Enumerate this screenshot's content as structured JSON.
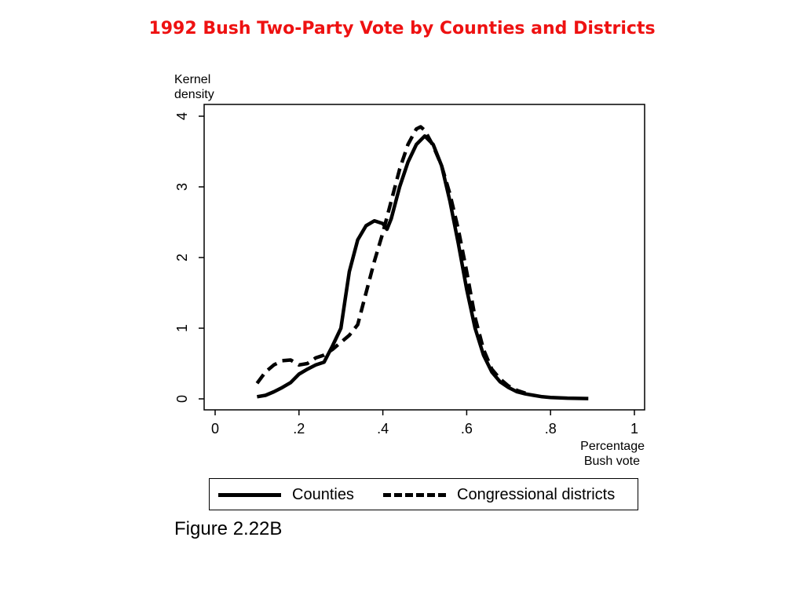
{
  "slide": {
    "title": "1992 Bush Two-Party Vote by Counties and Districts",
    "title_color": "#ee1111",
    "figure_label": "Figure 2.22B"
  },
  "chart_data": {
    "type": "line",
    "title": "",
    "xlabel": "Percentage Bush vote",
    "ylabel": "Kernel density",
    "xlim": [
      0,
      1
    ],
    "ylim": [
      0,
      4
    ],
    "x_ticks": [
      "0",
      ".2",
      ".4",
      ".6",
      ".8",
      "1"
    ],
    "y_ticks": [
      "0",
      "1",
      "2",
      "3",
      "4"
    ],
    "grid": false,
    "legend_position": "bottom",
    "line_color": "#000000",
    "series": [
      {
        "name": "Counties",
        "style": "solid",
        "points": [
          [
            0.1,
            0.03
          ],
          [
            0.12,
            0.05
          ],
          [
            0.14,
            0.1
          ],
          [
            0.16,
            0.16
          ],
          [
            0.18,
            0.23
          ],
          [
            0.2,
            0.35
          ],
          [
            0.22,
            0.42
          ],
          [
            0.24,
            0.48
          ],
          [
            0.26,
            0.52
          ],
          [
            0.28,
            0.75
          ],
          [
            0.3,
            1.0
          ],
          [
            0.31,
            1.4
          ],
          [
            0.32,
            1.8
          ],
          [
            0.34,
            2.25
          ],
          [
            0.36,
            2.45
          ],
          [
            0.38,
            2.52
          ],
          [
            0.4,
            2.48
          ],
          [
            0.41,
            2.4
          ],
          [
            0.42,
            2.55
          ],
          [
            0.44,
            3.0
          ],
          [
            0.46,
            3.35
          ],
          [
            0.48,
            3.6
          ],
          [
            0.5,
            3.72
          ],
          [
            0.52,
            3.6
          ],
          [
            0.54,
            3.3
          ],
          [
            0.56,
            2.8
          ],
          [
            0.58,
            2.2
          ],
          [
            0.6,
            1.55
          ],
          [
            0.62,
            1.0
          ],
          [
            0.64,
            0.62
          ],
          [
            0.66,
            0.38
          ],
          [
            0.68,
            0.24
          ],
          [
            0.7,
            0.16
          ],
          [
            0.72,
            0.1
          ],
          [
            0.74,
            0.07
          ],
          [
            0.76,
            0.05
          ],
          [
            0.78,
            0.03
          ],
          [
            0.8,
            0.02
          ],
          [
            0.84,
            0.01
          ],
          [
            0.89,
            0.005
          ]
        ]
      },
      {
        "name": "Congressional districts",
        "style": "dashed",
        "points": [
          [
            0.1,
            0.22
          ],
          [
            0.12,
            0.38
          ],
          [
            0.14,
            0.48
          ],
          [
            0.16,
            0.54
          ],
          [
            0.18,
            0.55
          ],
          [
            0.2,
            0.48
          ],
          [
            0.22,
            0.5
          ],
          [
            0.24,
            0.58
          ],
          [
            0.26,
            0.62
          ],
          [
            0.28,
            0.7
          ],
          [
            0.3,
            0.8
          ],
          [
            0.32,
            0.9
          ],
          [
            0.34,
            1.05
          ],
          [
            0.36,
            1.5
          ],
          [
            0.38,
            1.95
          ],
          [
            0.4,
            2.35
          ],
          [
            0.42,
            2.8
          ],
          [
            0.44,
            3.25
          ],
          [
            0.46,
            3.6
          ],
          [
            0.48,
            3.82
          ],
          [
            0.49,
            3.85
          ],
          [
            0.5,
            3.8
          ],
          [
            0.52,
            3.58
          ],
          [
            0.54,
            3.3
          ],
          [
            0.56,
            2.9
          ],
          [
            0.58,
            2.4
          ],
          [
            0.6,
            1.8
          ],
          [
            0.62,
            1.15
          ],
          [
            0.64,
            0.7
          ],
          [
            0.66,
            0.42
          ],
          [
            0.68,
            0.28
          ],
          [
            0.7,
            0.18
          ],
          [
            0.72,
            0.12
          ],
          [
            0.74,
            0.08
          ]
        ]
      }
    ]
  }
}
